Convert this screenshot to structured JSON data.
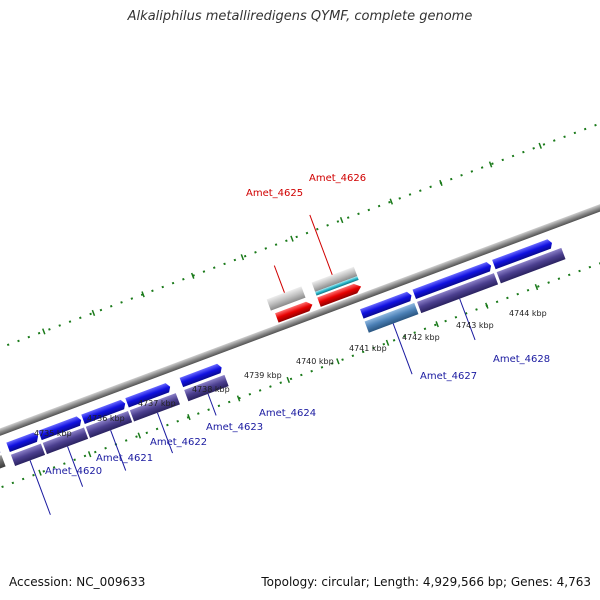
{
  "title": "Alkaliphilus metalliredigens QYMF, complete genome",
  "footer": {
    "accession": "Accession: NC_009633",
    "summary": "Topology: circular; Length: 4,929,566 bp; Genes: 4,763"
  },
  "colors": {
    "forward_cds": "#1010e0",
    "reverse_cds": "#4b3f8f",
    "highlight_gene": "#e60000",
    "rna_gene": "#26b5c8",
    "other_gene": "#c0c0c0",
    "backbone": "#8c8c8c",
    "tick": "#1a7a1a",
    "label_blue": "#1a1aa0",
    "label_red": "#d00000"
  },
  "kbp_labels": [
    "4735 kbp",
    "4736 kbp",
    "4737 kbp",
    "4738 kbp",
    "4739 kbp",
    "4740 kbp",
    "4741 kbp",
    "4742 kbp",
    "4743 kbp",
    "4744 kbp"
  ],
  "gene_labels": {
    "amet_4620": "Amet_4620",
    "amet_4621": "Amet_4621",
    "amet_4622": "Amet_4622",
    "amet_4623": "Amet_4623",
    "amet_4624": "Amet_4624",
    "amet_4625": "Amet_4625",
    "amet_4626": "Amet_4626",
    "amet_4627": "Amet_4627",
    "amet_4628": "Amet_4628"
  }
}
